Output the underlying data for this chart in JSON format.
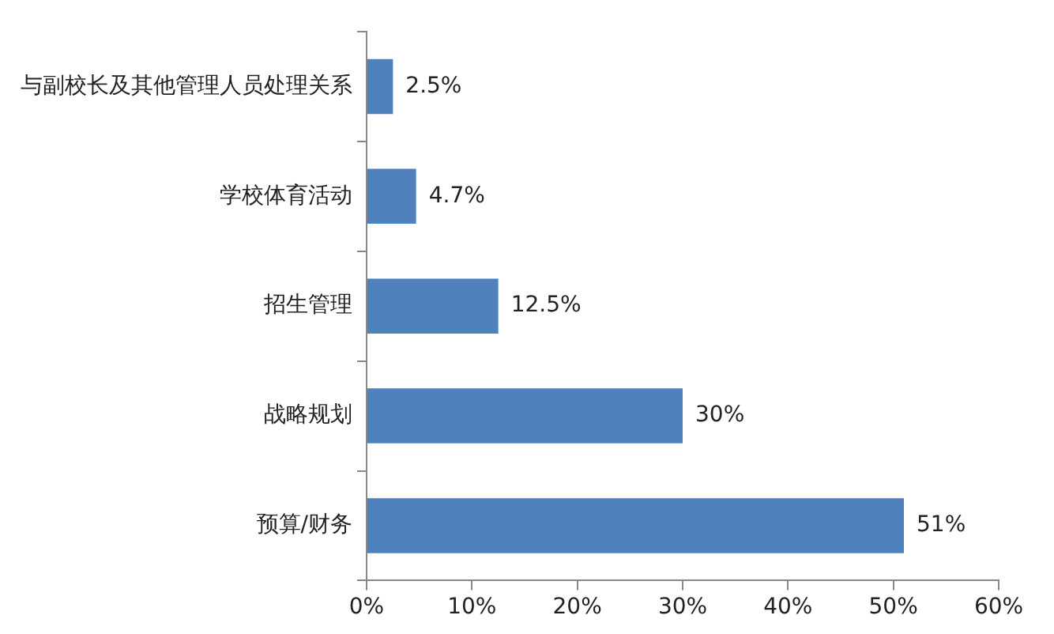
{
  "chart_data": {
    "type": "bar",
    "orientation": "horizontal",
    "categories": [
      "与副校长及其他管理人员处理关系",
      "学校体育活动",
      "招生管理",
      "战略规划",
      "预算/财务"
    ],
    "values": [
      2.5,
      4.7,
      12.5,
      30,
      51
    ],
    "value_labels": [
      "2.5%",
      "4.7%",
      "12.5%",
      "30%",
      "51%"
    ],
    "color": "#4f81bd",
    "xlim": [
      0,
      60
    ],
    "xticks": [
      {
        "value": 0,
        "label": "0%"
      },
      {
        "value": 10,
        "label": "10%"
      },
      {
        "value": 20,
        "label": "20%"
      },
      {
        "value": 30,
        "label": "30%"
      },
      {
        "value": 40,
        "label": "40%"
      },
      {
        "value": 50,
        "label": "50%"
      },
      {
        "value": 60,
        "label": "60%"
      }
    ],
    "grid": false,
    "legend": false
  }
}
